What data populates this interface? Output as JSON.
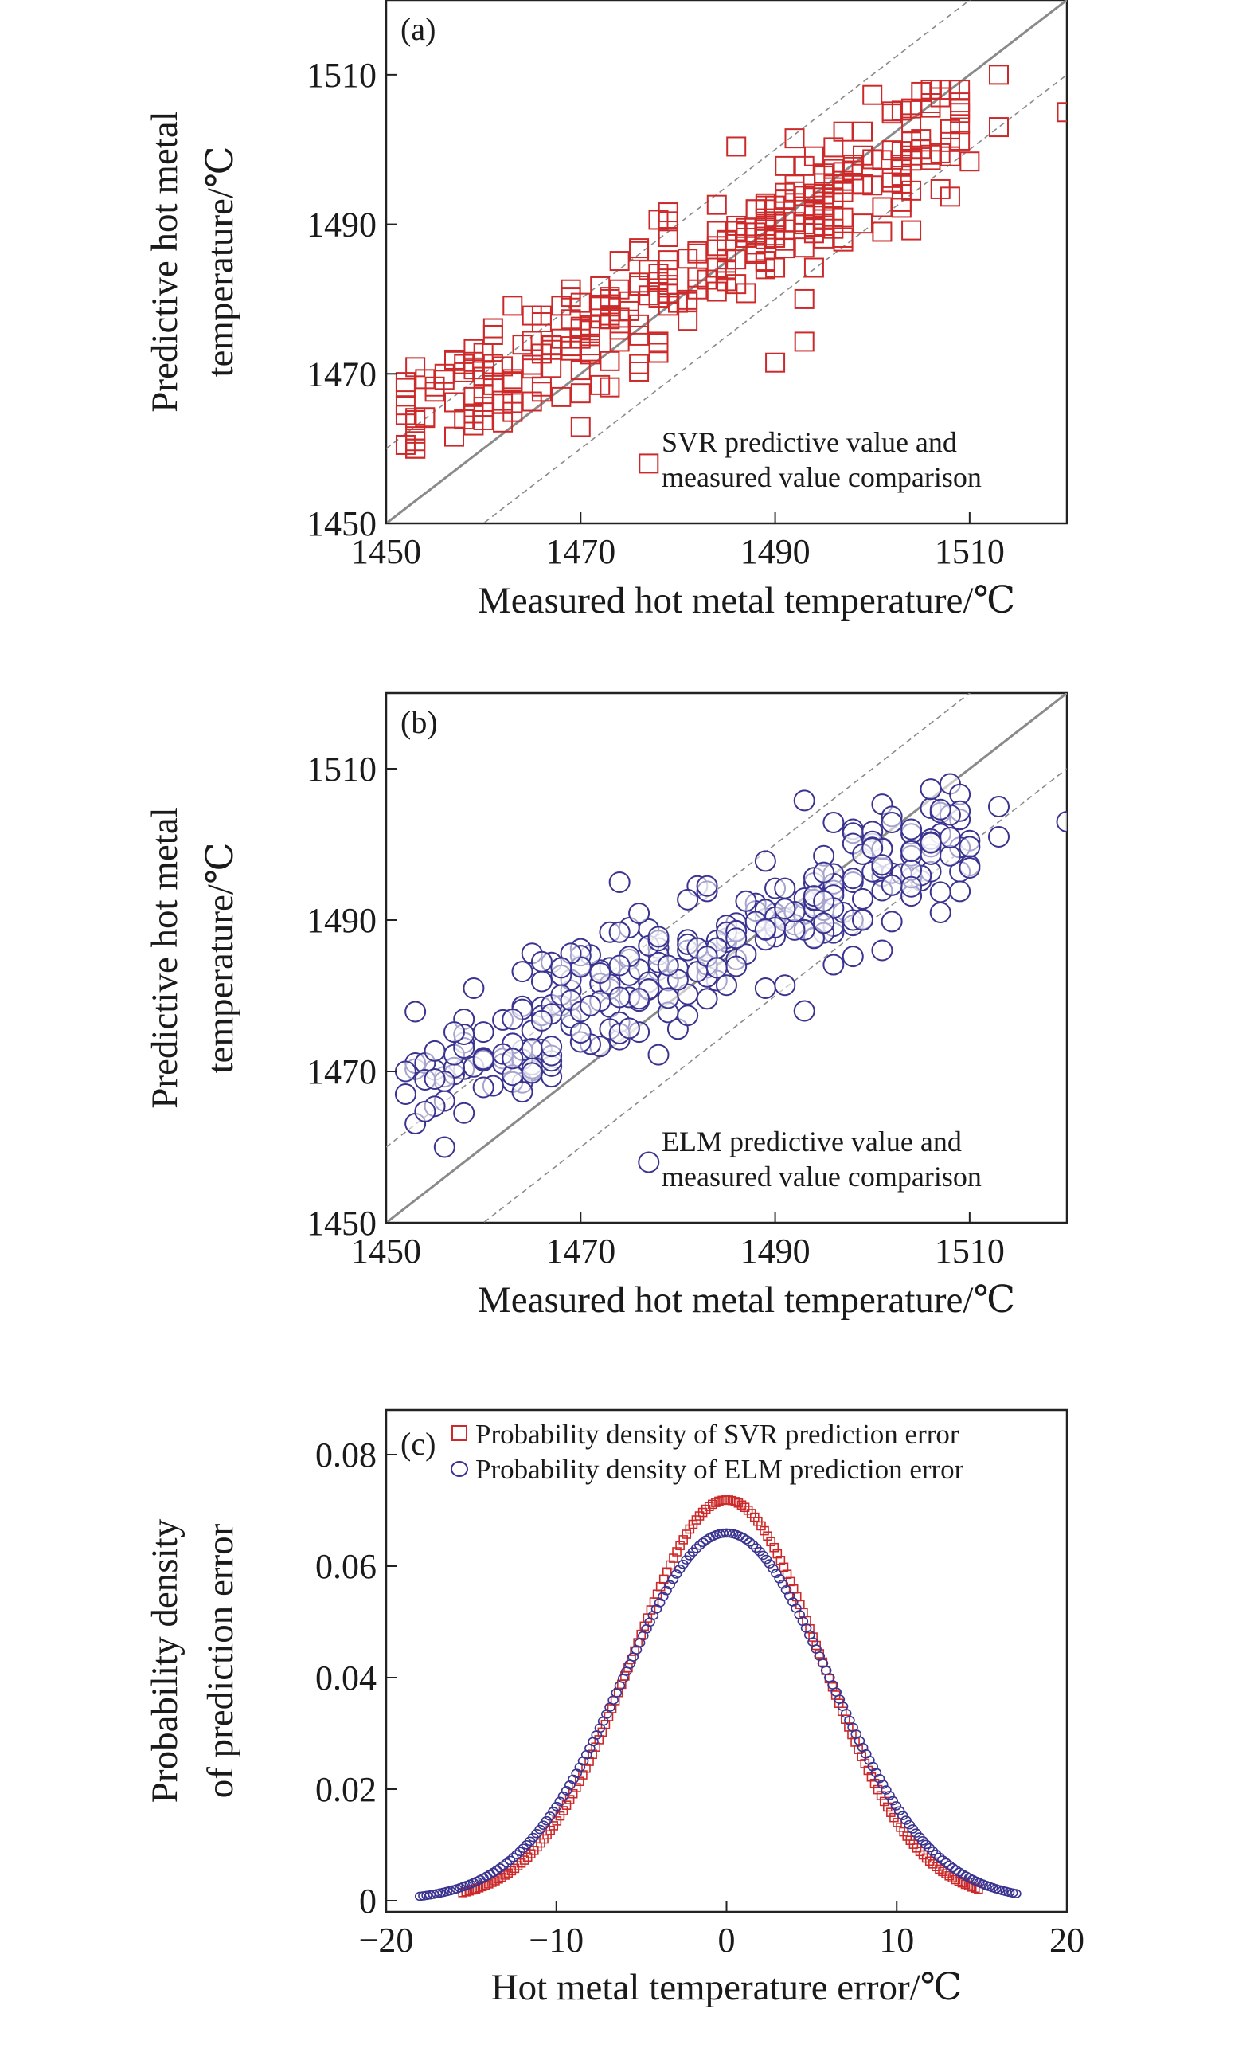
{
  "colors": {
    "svr": "#cc2a2a",
    "elm": "#3a3490",
    "axis": "#222222",
    "ref": "#8a8a8a"
  },
  "chart_data": [
    {
      "type": "scatter",
      "panel_label": "(a)",
      "xlabel": "Measured hot metal temperature/℃",
      "ylabel": [
        "Predictive hot metal",
        "temperature/℃"
      ],
      "xlim": [
        1450,
        1520
      ],
      "ylim": [
        1450,
        1520
      ],
      "xticks": [
        1450,
        1470,
        1490,
        1510
      ],
      "yticks": [
        1450,
        1470,
        1490,
        1510
      ],
      "marker": "square",
      "reference_lines": {
        "identity": "y = x",
        "band": [
          -10,
          10
        ]
      },
      "legend": [
        "SVR predictive value and",
        "measured value comparison"
      ],
      "legend_position": "bottom-right",
      "series": [
        {
          "points": []
        }
      ]
    },
    {
      "type": "scatter",
      "panel_label": "(b)",
      "xlabel": "Measured hot metal temperature/℃",
      "ylabel": [
        "Predictive hot metal",
        "temperature/℃"
      ],
      "xlim": [
        1450,
        1520
      ],
      "ylim": [
        1450,
        1520
      ],
      "xticks": [
        1450,
        1470,
        1490,
        1510
      ],
      "yticks": [
        1450,
        1470,
        1490,
        1510
      ],
      "marker": "circle",
      "reference_lines": {
        "identity": "y = x",
        "band": [
          -10,
          10
        ]
      },
      "legend": [
        "ELM predictive value and",
        "measured value comparison"
      ],
      "legend_position": "bottom-right",
      "series": [
        {
          "points": []
        }
      ]
    },
    {
      "type": "scatter",
      "panel_label": "(c)",
      "xlabel": "Hot metal temperature error/℃",
      "ylabel": [
        "Probability density",
        "of prediction error"
      ],
      "xlim": [
        -20,
        20
      ],
      "ylim": [
        -0.002,
        0.088
      ],
      "xticks": [
        -20,
        -10,
        0,
        10,
        20
      ],
      "xtick_labels": [
        "−20",
        "−10",
        "0",
        "10",
        "20"
      ],
      "yticks": [
        0,
        0.02,
        0.04,
        0.06,
        0.08
      ],
      "ytick_labels": [
        "0",
        "0.02",
        "0.04",
        "0.06",
        "0.08"
      ],
      "legend_position": "top",
      "series": [
        {
          "name": "Probability density of SVR prediction error",
          "marker": "square",
          "mean": 0,
          "std": 5.55,
          "x_range": [
            -15.5,
            14.8
          ],
          "count": 160
        },
        {
          "name": "Probability density of ELM prediction error",
          "marker": "circle",
          "mean": 0,
          "std": 6.05,
          "x_range": [
            -18,
            17
          ],
          "count": 180
        }
      ]
    }
  ]
}
